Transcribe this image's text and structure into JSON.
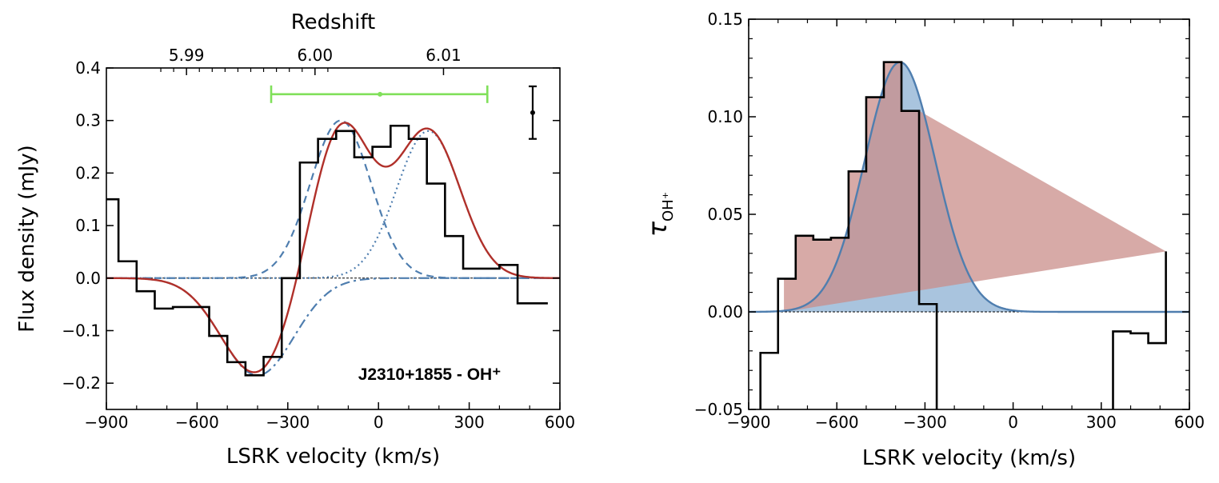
{
  "chart_data": [
    {
      "type": "line",
      "panel": "left",
      "xlabel": "LSRK velocity (km/s)",
      "ylabel": "Flux density (mJy)",
      "top_axis_label": "Redshift",
      "top_ticks": [
        {
          "label": "5.99",
          "v": -635
        },
        {
          "label": "6.00",
          "v": -210
        },
        {
          "label": "6.01",
          "v": 215
        }
      ],
      "xlim": [
        -900,
        600
      ],
      "ylim": [
        -0.25,
        0.4
      ],
      "xticks": [
        -900,
        -600,
        -300,
        0,
        300,
        600
      ],
      "xtick_labels": [
        "−900",
        "−600",
        "−300",
        "0",
        "300",
        "600"
      ],
      "yticks": [
        -0.2,
        -0.1,
        0.0,
        0.1,
        0.2,
        0.3,
        0.4
      ],
      "ytick_labels": [
        "−0.2",
        "−0.1",
        "0.0",
        "0.1",
        "0.2",
        "0.3",
        "0.4"
      ],
      "annotation": "J2310+1855 - OH⁺",
      "step_spectrum": {
        "edges": [
          -900,
          -860,
          -800,
          -740,
          -680,
          -620,
          -560,
          -500,
          -440,
          -380,
          -320,
          -260,
          -200,
          -140,
          -80,
          -20,
          40,
          100,
          160,
          220,
          280,
          340,
          400,
          460,
          520,
          560
        ],
        "values": [
          0.15,
          0.032,
          -0.025,
          -0.058,
          -0.055,
          -0.055,
          -0.11,
          -0.16,
          -0.185,
          -0.15,
          0.0,
          0.22,
          0.265,
          0.28,
          0.23,
          0.25,
          0.29,
          0.265,
          0.18,
          0.08,
          0.018,
          0.018,
          0.025,
          -0.048,
          -0.048
        ]
      },
      "components": {
        "absorption": {
          "amp": -0.185,
          "center": -400,
          "sigma": 120,
          "color": "#4f7eaf",
          "style": "dash-dot"
        },
        "emission_1": {
          "amp": 0.3,
          "center": -125,
          "sigma": 100,
          "color": "#4f7eaf",
          "style": "dashed"
        },
        "emission_2": {
          "amp": 0.28,
          "center": 165,
          "sigma": 105,
          "color": "#4f7eaf",
          "style": "dotted"
        },
        "total_color": "#b0302a"
      },
      "green_range": {
        "v_min": -355,
        "v_center": 5,
        "v_max": 360,
        "y": 0.35,
        "color": "#80e05a"
      },
      "error_bar": {
        "v": 510,
        "y": 0.315,
        "err": 0.05
      }
    },
    {
      "type": "line",
      "panel": "right",
      "xlabel": "LSRK velocity (km/s)",
      "ylabel": "τOH⁺",
      "xlim": [
        -900,
        600
      ],
      "ylim": [
        -0.05,
        0.15
      ],
      "xticks": [
        -900,
        -600,
        -300,
        0,
        300,
        600
      ],
      "xtick_labels": [
        "−900",
        "−600",
        "−300",
        "0",
        "300",
        "600"
      ],
      "yticks": [
        -0.05,
        0.0,
        0.05,
        0.1,
        0.15
      ],
      "ytick_labels": [
        "−0.05",
        "0.00",
        "0.05",
        "0.10",
        "0.15"
      ],
      "step_spectrum": {
        "edges": [
          -860,
          -800,
          -740,
          -680,
          -620,
          -560,
          -500,
          -440,
          -380,
          -320,
          -260,
          -240,
          340,
          400,
          460,
          520
        ],
        "values": [
          -0.021,
          0.017,
          0.039,
          0.037,
          0.038,
          0.072,
          0.11,
          0.128,
          0.103,
          0.004,
          -0.06,
          -0.06,
          -0.01,
          -0.011,
          -0.016,
          0.031
        ]
      },
      "extra_segment": {
        "v": -860,
        "y_from": -0.06,
        "y_to": -0.021
      },
      "gaussian": {
        "amp": 0.128,
        "center": -385,
        "sigma": 120,
        "color": "#4f7eaf",
        "fill": "#a9c4de"
      },
      "shaded_region": {
        "v_min": -780,
        "v_max": -320,
        "fill": "#c98d8a"
      }
    }
  ]
}
